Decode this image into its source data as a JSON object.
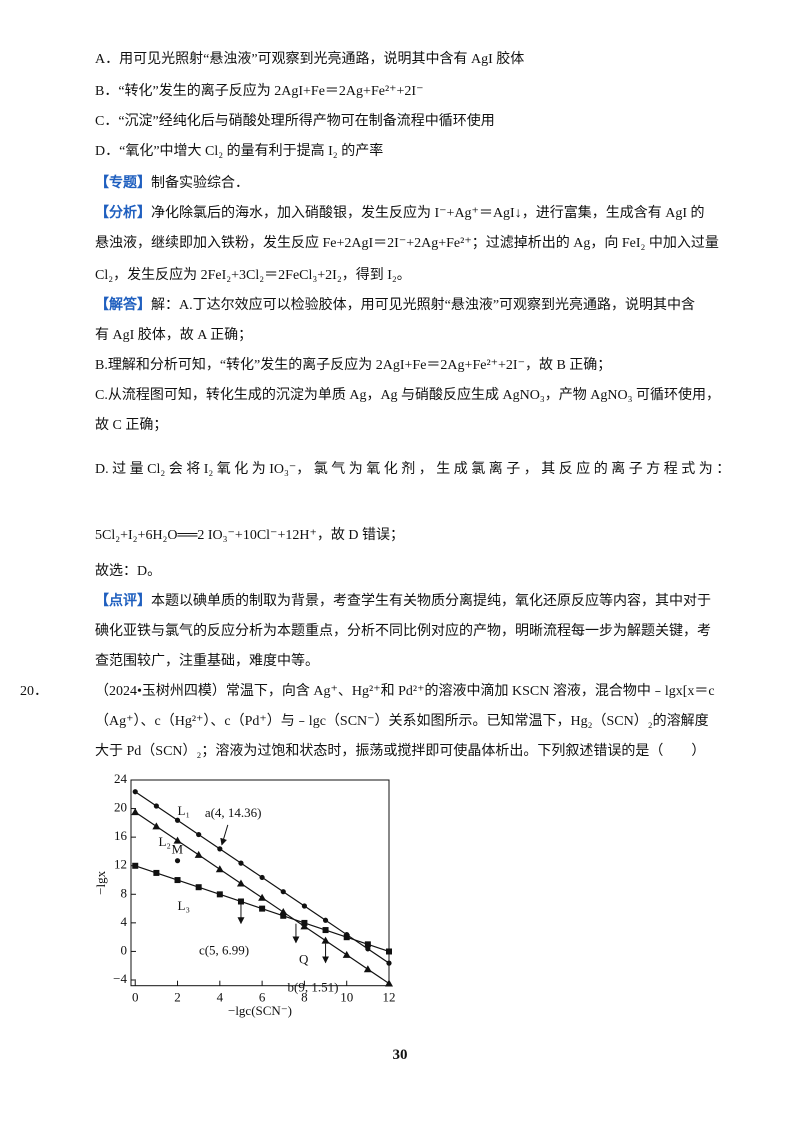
{
  "lines": [
    {
      "text": "A．用可见光照射“悬浊液”可观察到光亮通路，说明其中含有 AgI 胶体"
    },
    {
      "text": "B．“转化”发生的离子反应为 2AgI+Fe＝2Ag+Fe²⁺+2I⁻"
    },
    {
      "text": "C．“沉淀”经纯化后与硝酸处理所得产物可在制备流程中循环使用"
    },
    {
      "text": "D．“氧化”中增大 Cl₂ 的量有利于提高 I₂ 的产率"
    },
    {
      "tag": "【专题】",
      "text": "制备实验综合．"
    },
    {
      "tag": "【分析】",
      "text": "净化除氯后的海水，加入硝酸银，发生反应为 I⁻+Ag⁺＝AgI↓，进行富集，生成含有 AgI 的"
    },
    {
      "text": "悬浊液，继续即加入铁粉，发生反应 Fe+2AgI＝2I⁻+2Ag+Fe²⁺；过滤掉析出的 Ag，向 FeI₂ 中加入过量"
    },
    {
      "text": "Cl₂，发生反应为 2FeI₂+3Cl₂＝2FeCl₃+2I₂，得到 I₂。"
    },
    {
      "tag": "【解答】",
      "text": "解：A.丁达尔效应可以检验胶体，用可见光照射“悬浊液”可观察到光亮通路，说明其中含"
    },
    {
      "text": "有 AgI 胶体，故 A 正确；"
    },
    {
      "text": "B.理解和分析可知，“转化”发生的离子反应为 2AgI+Fe＝2Ag+Fe²⁺+2I⁻，故 B 正确；"
    },
    {
      "text": "C.从流程图可知，转化生成的沉淀为单质 Ag，Ag 与硝酸反应生成 AgNO₃，产物 AgNO₃ 可循环使用，"
    },
    {
      "text": "故 C 正确；"
    },
    {
      "text": "D. 过 量 Cl₂ 会 将 I₂ 氧 化 为 IO₃⁻， 氯 气 为 氧 化 剂 ， 生 成 氯 离 子 ， 其 反 应 的 离 子 方 程 式 为 ："
    },
    {
      "text": "5Cl₂+I₂+6H₂O══2 IO₃⁻+10Cl⁻+12H⁺，故 D 错误；"
    },
    {
      "text": "故选：D。"
    },
    {
      "tag": "【点评】",
      "text": "本题以碘单质的制取为背景，考查学生有关物质分离提纯，氧化还原反应等内容，其中对于"
    },
    {
      "text": "碘化亚铁与氯气的反应分析为本题重点，分析不同比例对应的产物，明晰流程每一步为解题关键，考"
    },
    {
      "text": "查范围较广，注重基础，难度中等。"
    },
    {
      "num": "20．",
      "text": "（2024•玉树州四模）常温下，向含 Ag⁺、Hg²⁺和 Pd²⁺的溶液中滴加 KSCN 溶液，混合物中﹣lgx[x＝c"
    },
    {
      "text": "（Ag⁺）、c（Hg²⁺）、c（Pd⁺）与﹣lgc（SCN⁻）关系如图所示。已知常温下，Hg₂（SCN）₂的溶解度"
    },
    {
      "text": "大于 Pd（SCN）₂；溶液为过饱和状态时，振荡或搅拌即可使晶体析出。下列叙述错误的是（　　）"
    }
  ],
  "page_number": "30",
  "chart_data": {
    "type": "line",
    "xlabel": "−lgc(SCN⁻)",
    "ylabel": "−lgx",
    "x": [
      0,
      1,
      2,
      3,
      4,
      5,
      6,
      7,
      8,
      9,
      10,
      11,
      12
    ],
    "series": [
      {
        "name": "L₁",
        "color": "#111111",
        "marker": "circle",
        "values": [
          22.36,
          20.36,
          18.36,
          16.36,
          14.36,
          12.36,
          10.36,
          8.36,
          6.36,
          4.36,
          2.36,
          0.36,
          -1.64
        ]
      },
      {
        "name": "L₂",
        "color": "#111111",
        "marker": "triangle",
        "values": [
          19.51,
          17.51,
          15.51,
          13.51,
          11.51,
          9.51,
          7.51,
          5.51,
          3.51,
          1.51,
          -0.49,
          -2.49,
          -4.49
        ]
      },
      {
        "name": "L₃",
        "color": "#111111",
        "marker": "square",
        "values": [
          11.99,
          10.99,
          9.99,
          8.99,
          7.99,
          6.99,
          5.99,
          4.99,
          3.99,
          2.99,
          1.99,
          0.99,
          -0.01
        ]
      }
    ],
    "annotations": [
      {
        "text": "a(4, 14.36)",
        "x": 4,
        "y": 14.36
      },
      {
        "text": "c(5, 6.99)",
        "x": 5,
        "y": 6.99
      },
      {
        "text": "b(9, 1.51)",
        "x": 9,
        "y": 1.51
      },
      {
        "text": "Q",
        "x": 7.6,
        "y": 4.3
      },
      {
        "text": "M",
        "x": 2,
        "y": 12.7
      }
    ],
    "xlim": [
      -0.2,
      12
    ],
    "ylim": [
      -4.8,
      24
    ],
    "xticks": [
      0,
      2,
      4,
      6,
      8,
      10,
      12
    ],
    "yticks": [
      {
        "value": -4,
        "label": "−4"
      },
      0,
      4,
      8,
      12,
      16,
      20,
      24
    ],
    "grid": false
  }
}
